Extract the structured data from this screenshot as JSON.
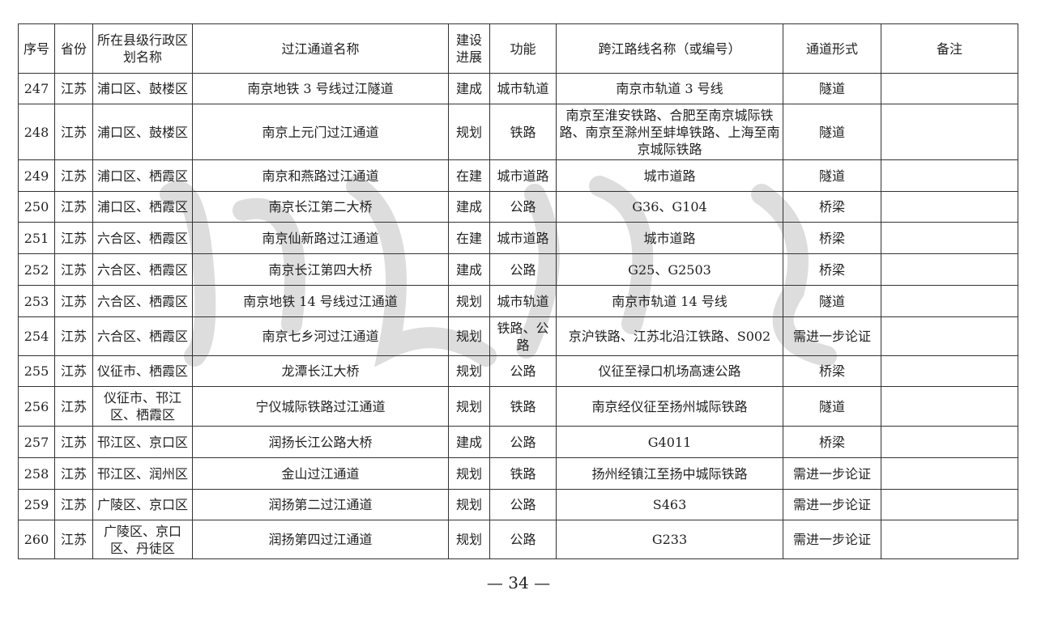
{
  "headers": [
    "序号",
    "省份",
    "所在县级行政区划名称",
    "过江通道名称",
    "建设进展",
    "功能",
    "跨江路线名称（或编号）",
    "通道形式",
    "备注"
  ],
  "rows": [
    [
      "247",
      "江苏",
      "浦口区、鼓楼区",
      "南京地铁 3 号线过江隧道",
      "建成",
      "城市轨道",
      "南京市轨道 3 号线",
      "隧道",
      ""
    ],
    [
      "248",
      "江苏",
      "浦口区、鼓楼区",
      "南京上元门过江通道",
      "规划",
      "铁路",
      "南京至淮安铁路、合肥至南京城际铁路、南京至滁州至蚌埠铁路、上海至南京城际铁路",
      "隧道",
      ""
    ],
    [
      "249",
      "江苏",
      "浦口区、栖霞区",
      "南京和燕路过江通道",
      "在建",
      "城市道路",
      "城市道路",
      "隧道",
      ""
    ],
    [
      "250",
      "江苏",
      "浦口区、栖霞区",
      "南京长江第二大桥",
      "建成",
      "公路",
      "G36、G104",
      "桥梁",
      ""
    ],
    [
      "251",
      "江苏",
      "六合区、栖霞区",
      "南京仙新路过江通道",
      "在建",
      "城市道路",
      "城市道路",
      "桥梁",
      ""
    ],
    [
      "252",
      "江苏",
      "六合区、栖霞区",
      "南京长江第四大桥",
      "建成",
      "公路",
      "G25、G2503",
      "桥梁",
      ""
    ],
    [
      "253",
      "江苏",
      "六合区、栖霞区",
      "南京地铁 14 号线过江通道",
      "规划",
      "城市轨道",
      "南京市轨道 14 号线",
      "隧道",
      ""
    ],
    [
      "254",
      "江苏",
      "六合区、栖霞区",
      "南京七乡河过江通道",
      "规划",
      "铁路、公路",
      "京沪铁路、江苏北沿江铁路、S002",
      "需进一步论证",
      ""
    ],
    [
      "255",
      "江苏",
      "仪征市、栖霞区",
      "龙潭长江大桥",
      "规划",
      "公路",
      "仪征至禄口机场高速公路",
      "桥梁",
      ""
    ],
    [
      "256",
      "江苏",
      "仪征市、邗江区、栖霞区",
      "宁仪城际铁路过江通道",
      "规划",
      "铁路",
      "南京经仪征至扬州城际铁路",
      "隧道",
      ""
    ],
    [
      "257",
      "江苏",
      "邗江区、京口区",
      "润扬长江公路大桥",
      "建成",
      "公路",
      "G4011",
      "桥梁",
      ""
    ],
    [
      "258",
      "江苏",
      "邗江区、润州区",
      "金山过江通道",
      "规划",
      "铁路",
      "扬州经镇江至扬中城际铁路",
      "需进一步论证",
      ""
    ],
    [
      "259",
      "江苏",
      "广陵区、京口区",
      "润扬第二过江通道",
      "规划",
      "公路",
      "S463",
      "需进一步论证",
      ""
    ],
    [
      "260",
      "江苏",
      "广陵区、京口区、丹徒区",
      "润扬第四过江通道",
      "规划",
      "公路",
      "G233",
      "需进一步论证",
      ""
    ]
  ],
  "page_number": "— 34 —"
}
